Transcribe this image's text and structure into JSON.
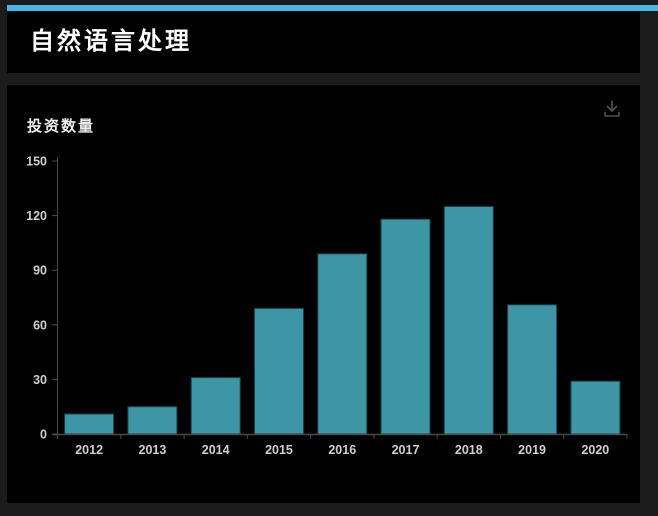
{
  "accent_color": "#45b7e5",
  "header": {
    "title": "自然语言处理"
  },
  "toolbar": {
    "download_icon": "download-icon"
  },
  "chart_data": {
    "type": "bar",
    "title": "投资数量",
    "categories": [
      "2012",
      "2013",
      "2014",
      "2015",
      "2016",
      "2017",
      "2018",
      "2019",
      "2020"
    ],
    "values": [
      11,
      15,
      31,
      69,
      99,
      118,
      125,
      71,
      29
    ],
    "xlabel": "",
    "ylabel": "投资数量",
    "ylim": [
      0,
      150
    ],
    "yticks": [
      0,
      30,
      60,
      90,
      120,
      150
    ],
    "grid": false,
    "legend": false,
    "bar_color": "#3d96a5",
    "bar_border_color": "#16434d",
    "axis_color": "#4a4a4a",
    "tick_label_color": "#cfcfcf",
    "background_color": "#000000"
  }
}
